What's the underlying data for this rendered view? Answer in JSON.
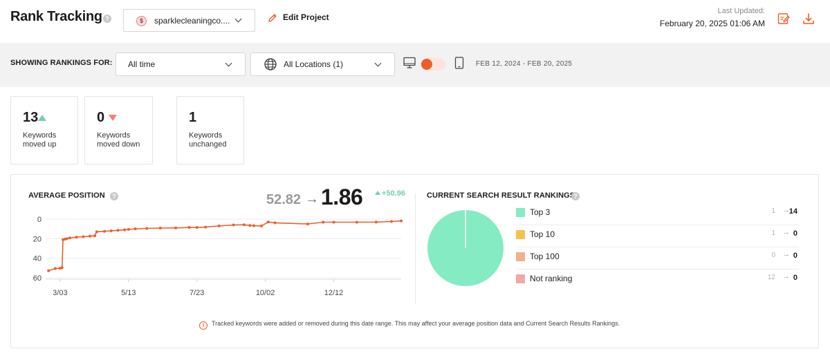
{
  "header": {
    "title": "Rank Tracking",
    "help_glyph": "?",
    "project": {
      "logo_glyph": "$",
      "name": "sparklecleaningco...."
    },
    "edit_project_label": "Edit Project",
    "last_updated_label": "Last Updated:",
    "last_updated_value": "February 20, 2025 01:06 AM",
    "icons": [
      "edit-report-icon",
      "download-icon"
    ],
    "accent_color": "#ee5e2b"
  },
  "filters": {
    "showing_label": "SHOWING RANKINGS FOR:",
    "time_range": "All time",
    "locations": "All Locations (1)",
    "device_toggle": {
      "left": "desktop-icon",
      "right": "mobile-icon",
      "selected": "desktop"
    },
    "date_range": "FEB 12, 2024 - FEB 20, 2025"
  },
  "stats": [
    {
      "value": "13",
      "trend": "up",
      "label": "Keywords moved up"
    },
    {
      "value": "0",
      "trend": "down",
      "label": "Keywords moved down"
    },
    {
      "value": "1",
      "trend": "none",
      "label": "Keywords unchanged"
    }
  ],
  "average_position": {
    "title": "AVERAGE POSITION",
    "from": "52.82",
    "arrow": "→",
    "to": "1.86",
    "delta": "+50.96"
  },
  "current_rankings": {
    "title": "CURRENT SEARCH RESULT RANKINGS",
    "rows": [
      {
        "name": "Top 3",
        "from": "1",
        "arrow": "→",
        "to": "14",
        "color": "#85ebc2"
      },
      {
        "name": "Top 10",
        "from": "1",
        "arrow": "→",
        "to": "0",
        "color": "#f6c04c"
      },
      {
        "name": "Top 100",
        "from": "0",
        "arrow": "→",
        "to": "0",
        "color": "#f2b08c"
      },
      {
        "name": "Not ranking",
        "from": "12",
        "arrow": "→",
        "to": "0",
        "color": "#f2aaa8"
      }
    ]
  },
  "note": {
    "icon": "info-icon",
    "text": "Tracked keywords were added or removed during this date range. This may affect your average position data and Current Search Results Rankings."
  },
  "chart_data": [
    {
      "type": "line",
      "title": "AVERAGE POSITION",
      "xlabel": "",
      "ylabel": "",
      "x_tick_labels": [
        "3/03",
        "5/13",
        "7/23",
        "10/02",
        "12/12"
      ],
      "y_tick_labels": [
        "0",
        "20",
        "40",
        "60"
      ],
      "ylim": [
        60,
        0
      ],
      "y_inverted": true,
      "grid": "horizontal",
      "series": [
        {
          "color": "#ee5e2b",
          "x": [
            "2024-02-20",
            "2024-02-27",
            "2024-03-03",
            "2024-03-05",
            "2024-03-06",
            "2024-03-08",
            "2024-03-10",
            "2024-03-13",
            "2024-03-20",
            "2024-03-27",
            "2024-04-03",
            "2024-04-08",
            "2024-04-10",
            "2024-04-18",
            "2024-04-25",
            "2024-05-02",
            "2024-05-09",
            "2024-05-13",
            "2024-05-20",
            "2024-06-01",
            "2024-06-15",
            "2024-07-01",
            "2024-07-15",
            "2024-07-23",
            "2024-08-01",
            "2024-08-15",
            "2024-08-30",
            "2024-09-10",
            "2024-09-16",
            "2024-09-20",
            "2024-09-28",
            "2024-10-05",
            "2024-10-12",
            "2024-11-15",
            "2024-12-01",
            "2024-12-12",
            "2025-01-05",
            "2025-01-25",
            "2025-02-10",
            "2025-02-20"
          ],
          "y": [
            52.8,
            50.5,
            50.2,
            49.8,
            21.0,
            20.5,
            20.0,
            19.2,
            18.5,
            18.0,
            17.5,
            17.0,
            13.0,
            12.5,
            12.0,
            11.5,
            11.0,
            10.5,
            10.0,
            9.5,
            9.2,
            9.0,
            8.6,
            8.6,
            8.2,
            7.0,
            6.0,
            5.8,
            6.5,
            6.8,
            7.0,
            3.0,
            3.8,
            5.0,
            3.2,
            3.2,
            3.2,
            3.0,
            2.5,
            1.86
          ]
        }
      ]
    },
    {
      "type": "pie",
      "title": "CURRENT SEARCH RESULT RANKINGS",
      "categories": [
        "Top 3",
        "Top 10",
        "Top 100",
        "Not ranking"
      ],
      "values": [
        14,
        0,
        0,
        0
      ],
      "colors": [
        "#85ebc2",
        "#f6c04c",
        "#f2b08c",
        "#f2aaa8"
      ]
    }
  ]
}
